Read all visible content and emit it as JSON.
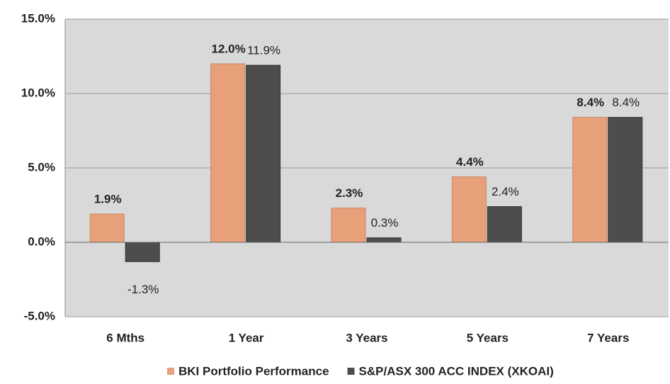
{
  "chart_data": {
    "type": "bar",
    "categories": [
      "6 Mths",
      "1 Year",
      "3 Years",
      "5 Years",
      "7 Years"
    ],
    "series": [
      {
        "name": "BKI Portfolio Performance",
        "color": "#e8a07a",
        "values": [
          1.9,
          12.0,
          2.3,
          4.4,
          8.4
        ],
        "value_labels": [
          "1.9%",
          "12.0%",
          "2.3%",
          "4.4%",
          "8.4%"
        ]
      },
      {
        "name": "S&P/ASX 300 ACC INDEX (XKOAI)",
        "color": "#4d4d4d",
        "values": [
          -1.3,
          11.9,
          0.3,
          2.4,
          8.4
        ],
        "value_labels": [
          "-1.3%",
          "11.9%",
          "0.3%",
          "2.4%",
          "8.4%"
        ]
      }
    ],
    "ylim": [
      -5,
      15
    ],
    "yticks": [
      {
        "value": -5,
        "label": "-5.0%"
      },
      {
        "value": 0,
        "label": "0.0%"
      },
      {
        "value": 5,
        "label": "5.0%"
      },
      {
        "value": 10,
        "label": "10.0%"
      },
      {
        "value": 15,
        "label": "15.0%"
      }
    ],
    "grid": true
  }
}
